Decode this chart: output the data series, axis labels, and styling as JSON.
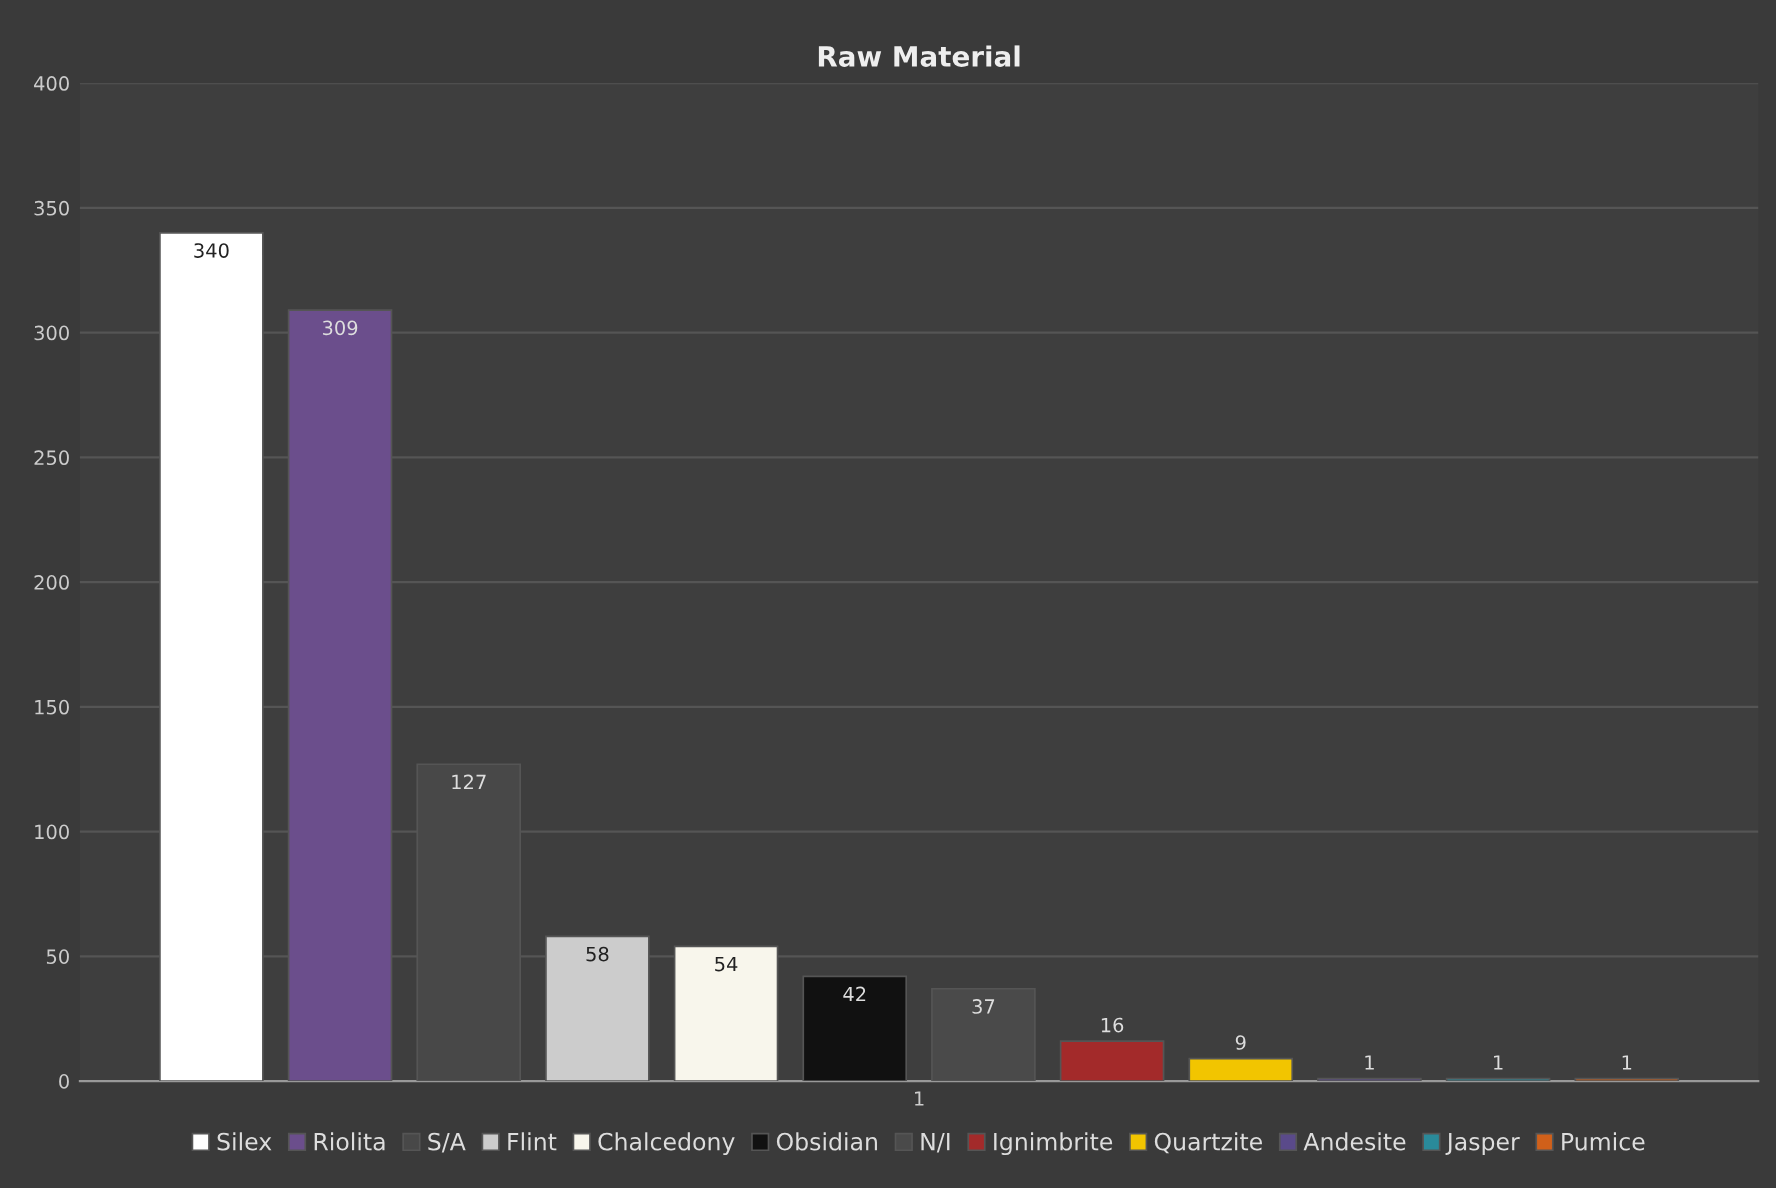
{
  "chart_data": {
    "type": "bar",
    "title": "Raw Material",
    "categories": [
      "1"
    ],
    "series": [
      {
        "name": "Silex",
        "color": "#ffffff",
        "values": [
          340
        ]
      },
      {
        "name": "Riolita",
        "color": "#6b4e8c",
        "values": [
          309
        ]
      },
      {
        "name": "S/A",
        "color": "#484848",
        "values": [
          127
        ]
      },
      {
        "name": "Flint",
        "color": "#cccccc",
        "values": [
          58
        ]
      },
      {
        "name": "Chalcedony",
        "color": "#f8f6ec",
        "values": [
          54
        ]
      },
      {
        "name": "Obsidian",
        "color": "#111111",
        "values": [
          42
        ]
      },
      {
        "name": "N/I",
        "color": "#4a4a4a",
        "values": [
          37
        ]
      },
      {
        "name": "Ignimbrite",
        "color": "#a32a2a",
        "values": [
          16
        ]
      },
      {
        "name": "Quartzite",
        "color": "#f2c500",
        "values": [
          9
        ]
      },
      {
        "name": "Andesite",
        "color": "#5a4a8a",
        "values": [
          1
        ]
      },
      {
        "name": "Jasper",
        "color": "#2a8a9a",
        "values": [
          1
        ]
      },
      {
        "name": "Pumice",
        "color": "#d0601a",
        "values": [
          1
        ]
      }
    ],
    "ylim": [
      0,
      400
    ],
    "yticks": [
      0,
      50,
      100,
      150,
      200,
      250,
      300,
      350,
      400
    ],
    "grid": "y",
    "legend": "bottom",
    "data_labels": true
  }
}
